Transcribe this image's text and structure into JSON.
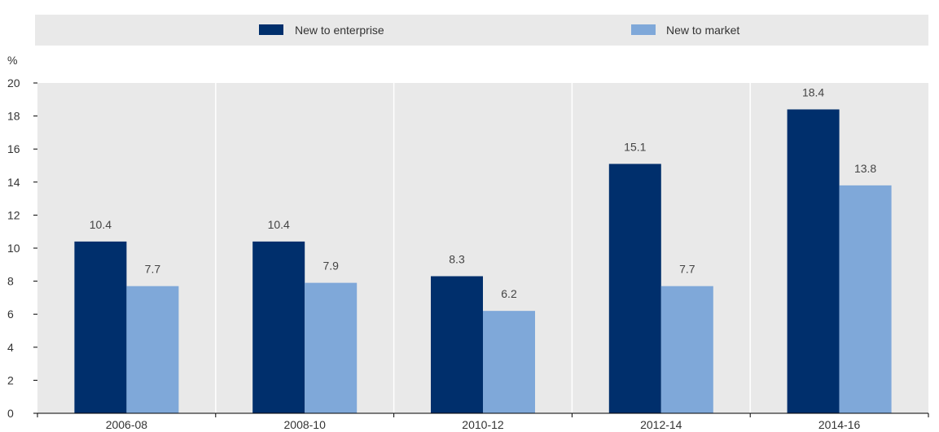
{
  "colors": {
    "new_to_enterprise": "#002F6C",
    "new_to_market": "#7FA8D9",
    "plot_background": "#E9E9E9",
    "legend_background": "#E9E9E9",
    "gridline": "#FFFFFF",
    "axis": "#000000"
  },
  "chart_data": {
    "type": "bar",
    "title": "",
    "xlabel": "",
    "ylabel": "%",
    "categories": [
      "2006-08",
      "2008-10",
      "2010-12",
      "2012-14",
      "2014-16"
    ],
    "series": [
      {
        "name": "New to enterprise",
        "values": [
          10.4,
          10.4,
          8.3,
          15.1,
          18.4
        ]
      },
      {
        "name": "New to market",
        "values": [
          7.7,
          7.9,
          6.2,
          7.7,
          13.8
        ]
      }
    ],
    "ylim": [
      0,
      20
    ],
    "yticks": [
      0,
      2,
      4,
      6,
      8,
      10,
      12,
      14,
      16,
      18,
      20
    ],
    "grid": "vertical",
    "legend_position": "top",
    "data_labels": [
      [
        "10.4",
        "10.4",
        "8.3",
        "15.1",
        "18.4"
      ],
      [
        "7.7",
        "7.9",
        "6.2",
        "7.7",
        "13.8"
      ]
    ]
  }
}
